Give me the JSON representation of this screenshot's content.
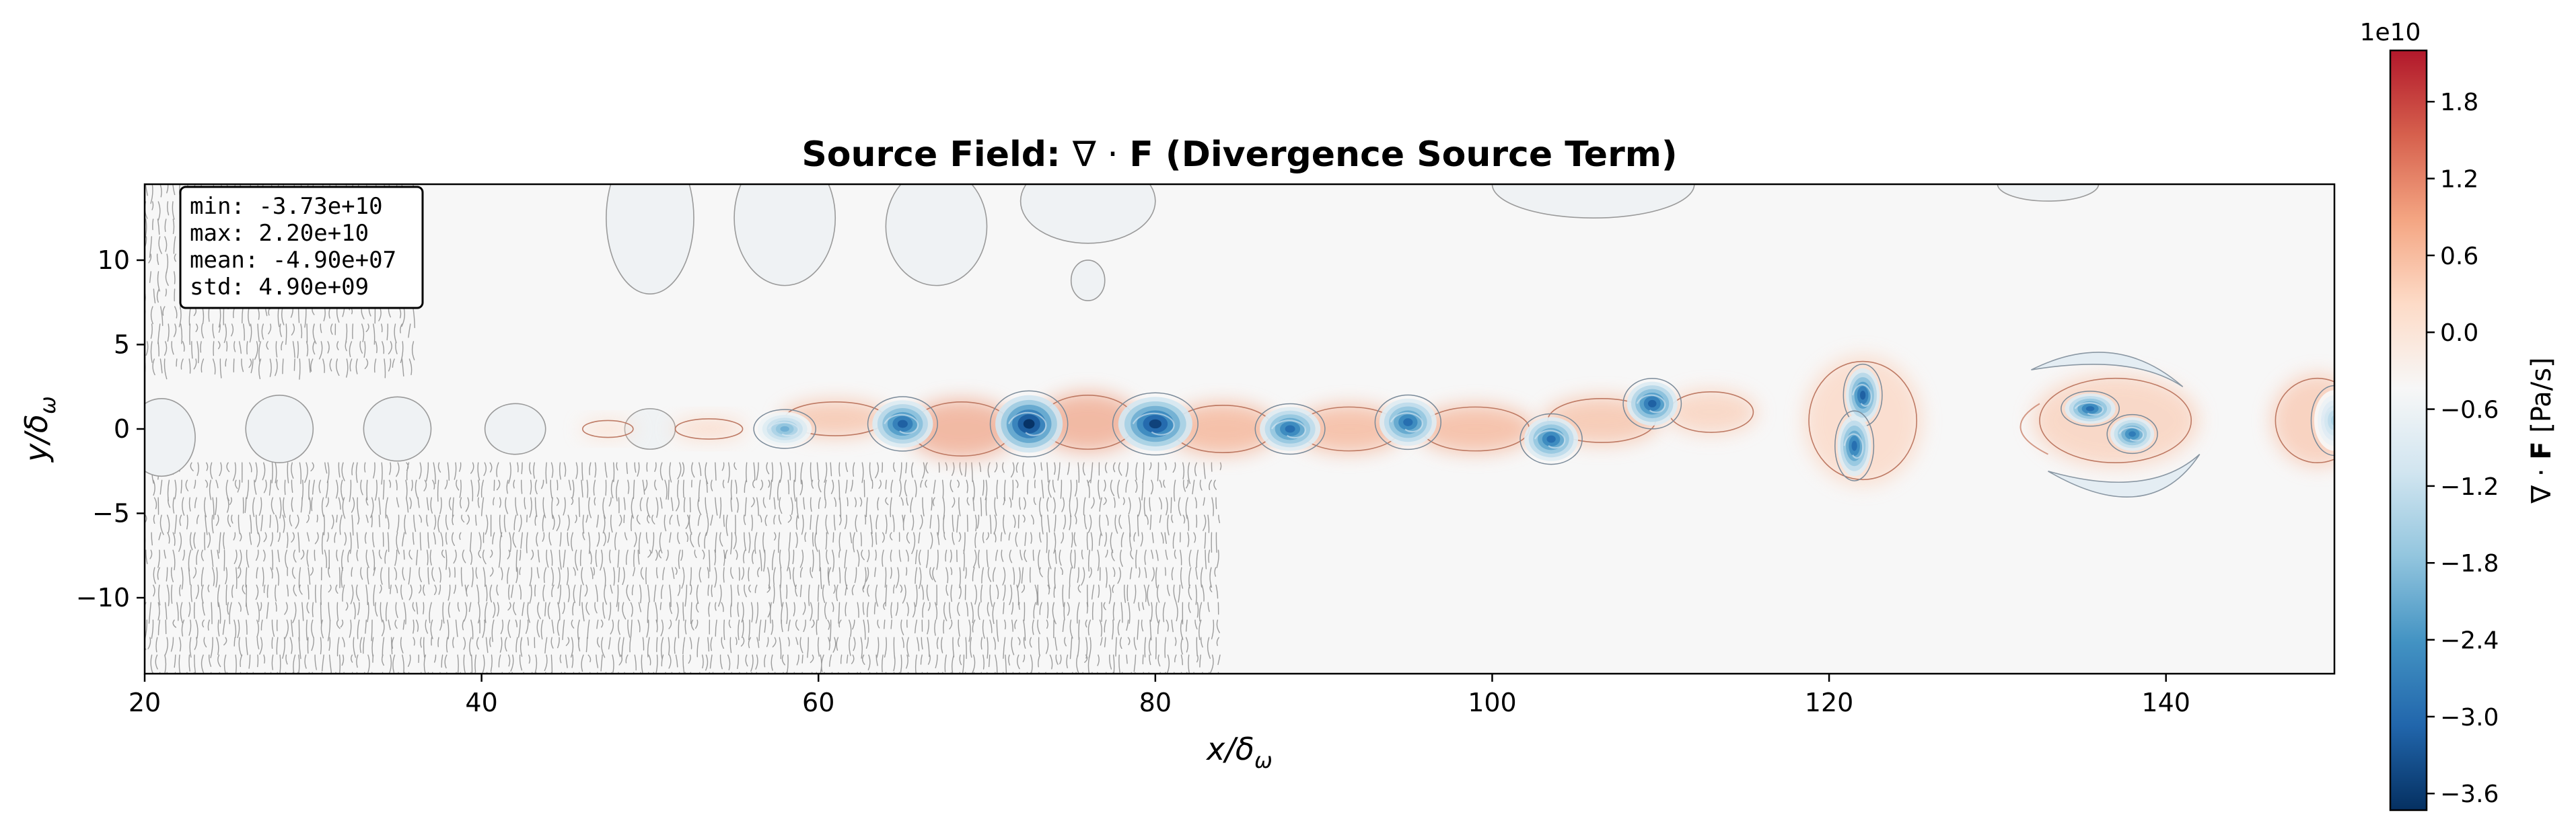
{
  "chart_data": {
    "type": "heatmap",
    "title": "Source Field: ∇·F (Divergence Source Term)",
    "title_parts": {
      "prefix": "Source Field: ",
      "nabla": "∇",
      "dot": " · ",
      "bold_f": "F",
      "suffix": " (Divergence Source Term)"
    },
    "xlabel": {
      "base": "x/δ",
      "sub": "ω"
    },
    "ylabel": {
      "base": "y/δ",
      "sub": "ω"
    },
    "xlim": [
      20,
      150
    ],
    "ylim": [
      -14.5,
      14.5
    ],
    "x_ticks": [
      20,
      40,
      60,
      80,
      100,
      120,
      140
    ],
    "x_tick_labels": [
      "20",
      "40",
      "60",
      "80",
      "100",
      "120",
      "140"
    ],
    "y_ticks": [
      10,
      5,
      0,
      -5,
      -10
    ],
    "y_tick_labels": [
      "10",
      "5",
      "0",
      "−5",
      "−10"
    ],
    "colormap": "RdBu_r",
    "colormap_stops": [
      "#053061",
      "#2166ac",
      "#4393c3",
      "#92c5de",
      "#d1e5f0",
      "#f7f7f7",
      "#fddbc7",
      "#f4a582",
      "#d6604d",
      "#b2182b"
    ],
    "colorbar": {
      "label": "∇ · F [Pa/s]",
      "label_parts": {
        "nabla": "∇ · ",
        "bold_f": "F",
        "units": " [Pa/s]"
      },
      "multiplier": "1e10",
      "range": [
        -3.73,
        2.2
      ],
      "ticks": [
        1.8,
        1.2,
        0.6,
        0.0,
        -0.6,
        -1.2,
        -1.8,
        -2.4,
        -3.0,
        -3.6
      ],
      "tick_labels": [
        "1.8",
        "1.2",
        "0.6",
        "0.0",
        "−0.6",
        "−1.2",
        "−1.8",
        "−2.4",
        "−3.0",
        "−3.6"
      ]
    },
    "stats": [
      "min: -3.73e+10",
      "max: 2.20e+10",
      "mean: -4.90e+07",
      "std: 4.90e+09"
    ],
    "vortices": [
      {
        "x": 58,
        "y": 0.0,
        "rx": 1.6,
        "ry": 1.0,
        "strength": -0.55
      },
      {
        "x": 65,
        "y": 0.3,
        "rx": 1.8,
        "ry": 1.4,
        "strength": -0.85
      },
      {
        "x": 72.5,
        "y": 0.3,
        "rx": 2.0,
        "ry": 1.7,
        "strength": -1.0
      },
      {
        "x": 80,
        "y": 0.3,
        "rx": 2.2,
        "ry": 1.6,
        "strength": -0.95
      },
      {
        "x": 88,
        "y": 0.0,
        "rx": 1.8,
        "ry": 1.3,
        "strength": -0.8
      },
      {
        "x": 95,
        "y": 0.4,
        "rx": 1.7,
        "ry": 1.4,
        "strength": -0.8
      },
      {
        "x": 103.5,
        "y": -0.6,
        "rx": 1.6,
        "ry": 1.3,
        "strength": -0.8
      },
      {
        "x": 109.5,
        "y": 1.5,
        "rx": 1.5,
        "ry": 1.3,
        "strength": -0.85
      },
      {
        "x": 122,
        "y": 2.0,
        "rx": 1.0,
        "ry": 1.6,
        "strength": -0.85
      },
      {
        "x": 121.5,
        "y": -1.0,
        "rx": 1.0,
        "ry": 1.8,
        "strength": -0.8
      },
      {
        "x": 135.5,
        "y": 1.2,
        "rx": 1.5,
        "ry": 0.9,
        "strength": -0.8
      },
      {
        "x": 138,
        "y": -0.3,
        "rx": 1.3,
        "ry": 1.0,
        "strength": -0.75
      },
      {
        "x": 150,
        "y": 0.5,
        "rx": 1.2,
        "ry": 1.8,
        "strength": -0.4
      }
    ],
    "positive_bands": [
      {
        "x": 47.5,
        "y": 0.0,
        "rx": 1.5,
        "ry": 0.5,
        "strength": 0.1
      },
      {
        "x": 53.5,
        "y": 0.0,
        "rx": 2.0,
        "ry": 0.6,
        "strength": 0.15
      },
      {
        "x": 61,
        "y": 0.6,
        "rx": 3.0,
        "ry": 1.0,
        "strength": 0.3
      },
      {
        "x": 68.5,
        "y": 0.0,
        "rx": 3.0,
        "ry": 1.6,
        "strength": 0.45
      },
      {
        "x": 76,
        "y": 0.4,
        "rx": 2.8,
        "ry": 1.6,
        "strength": 0.45
      },
      {
        "x": 84,
        "y": 0.0,
        "rx": 3.0,
        "ry": 1.4,
        "strength": 0.4
      },
      {
        "x": 91.5,
        "y": 0.0,
        "rx": 3.0,
        "ry": 1.3,
        "strength": 0.38
      },
      {
        "x": 99,
        "y": 0.0,
        "rx": 3.2,
        "ry": 1.3,
        "strength": 0.38
      },
      {
        "x": 106.5,
        "y": 0.5,
        "rx": 3.2,
        "ry": 1.3,
        "strength": 0.3
      },
      {
        "x": 113,
        "y": 1.0,
        "rx": 2.5,
        "ry": 1.2,
        "strength": 0.2
      },
      {
        "x": 122,
        "y": 0.5,
        "rx": 3.2,
        "ry": 3.5,
        "strength": 0.15
      },
      {
        "x": 137,
        "y": 0.5,
        "rx": 4.5,
        "ry": 2.5,
        "strength": 0.2
      },
      {
        "x": 149,
        "y": 0.5,
        "rx": 2.5,
        "ry": 2.5,
        "strength": 0.25
      }
    ],
    "weak_negative_blobs": [
      {
        "x": 21,
        "y": -0.5,
        "rx": 2.0,
        "ry": 2.3
      },
      {
        "x": 28,
        "y": 0.0,
        "rx": 2.0,
        "ry": 2.0
      },
      {
        "x": 35,
        "y": 0.0,
        "rx": 2.0,
        "ry": 1.9
      },
      {
        "x": 42,
        "y": 0.0,
        "rx": 1.8,
        "ry": 1.5
      },
      {
        "x": 50,
        "y": 0.0,
        "rx": 1.5,
        "ry": 1.2
      },
      {
        "x": 50,
        "y": 12.5,
        "rx": 2.6,
        "ry": 4.5
      },
      {
        "x": 58,
        "y": 12.5,
        "rx": 3.0,
        "ry": 4.0
      },
      {
        "x": 67,
        "y": 12.0,
        "rx": 3.0,
        "ry": 3.5
      },
      {
        "x": 76,
        "y": 13.5,
        "rx": 4.0,
        "ry": 2.5
      },
      {
        "x": 76,
        "y": 8.8,
        "rx": 1.0,
        "ry": 1.2
      },
      {
        "x": 106,
        "y": 14.5,
        "rx": 6.0,
        "ry": 2.0
      },
      {
        "x": 133,
        "y": 14.5,
        "rx": 3.0,
        "ry": 1.0
      }
    ],
    "noise_regions": [
      {
        "x0": 20,
        "x1": 36,
        "y0": 3.5,
        "y1": 14.5
      },
      {
        "x0": 20,
        "x1": 84,
        "y0": -14.5,
        "y1": -2.0
      }
    ]
  }
}
